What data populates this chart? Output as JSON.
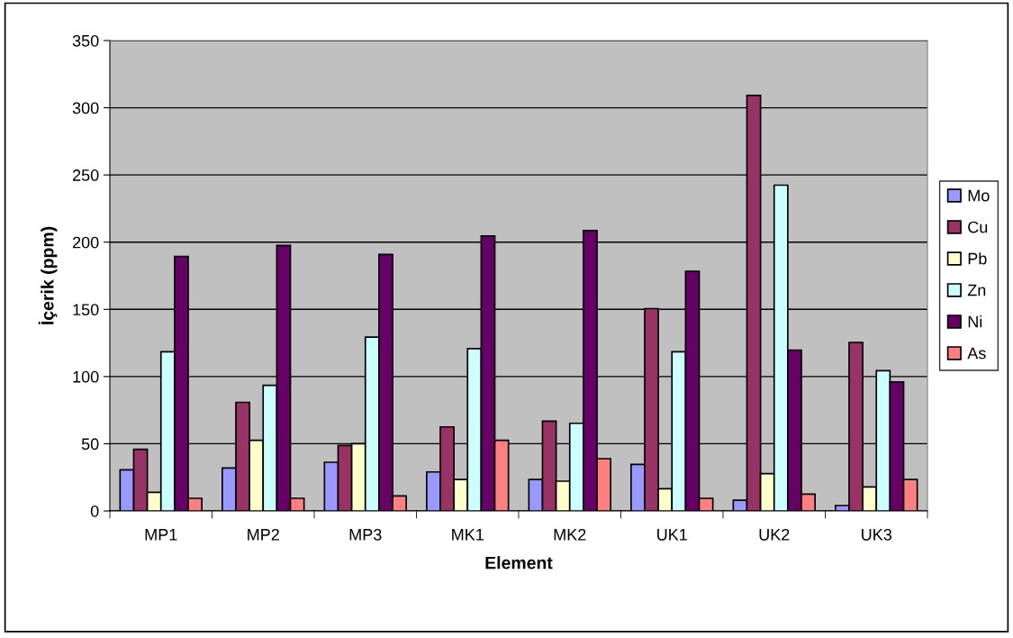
{
  "chart_data": {
    "type": "bar",
    "xlabel": "Element",
    "ylabel": "İçerik (ppm)",
    "categories": [
      "MP1",
      "MP2",
      "MP3",
      "MK1",
      "MK2",
      "UK1",
      "UK2",
      "UK3"
    ],
    "series": [
      {
        "name": "Mo",
        "color": "#9999ff",
        "values": [
          30.6,
          31.9,
          36.2,
          29,
          23.4,
          34.6,
          8,
          4
        ]
      },
      {
        "name": "Cu",
        "color": "#993366",
        "values": [
          45.8,
          80.8,
          48.7,
          62.5,
          66.8,
          150.5,
          309.2,
          125.3
        ]
      },
      {
        "name": "Pb",
        "color": "#ffffcc",
        "values": [
          13.8,
          52.5,
          50,
          23.4,
          22.1,
          16.5,
          27.7,
          17.8
        ]
      },
      {
        "name": "Zn",
        "color": "#ccffff",
        "values": [
          118.4,
          93.4,
          129.3,
          120.8,
          65.2,
          118.4,
          242.4,
          104.3
        ]
      },
      {
        "name": "Ni",
        "color": "#660066",
        "values": [
          189.4,
          197.5,
          190.8,
          204.6,
          208.6,
          178.3,
          119.7,
          96
        ]
      },
      {
        "name": "As",
        "color": "#ff8080",
        "values": [
          9.4,
          9.4,
          11.1,
          52.5,
          38.9,
          9.4,
          12.5,
          23.4
        ]
      }
    ],
    "ylim": [
      0,
      350
    ],
    "yticks": [
      0,
      50,
      100,
      150,
      200,
      250,
      300,
      350
    ],
    "grid": "y",
    "legend": "right"
  }
}
